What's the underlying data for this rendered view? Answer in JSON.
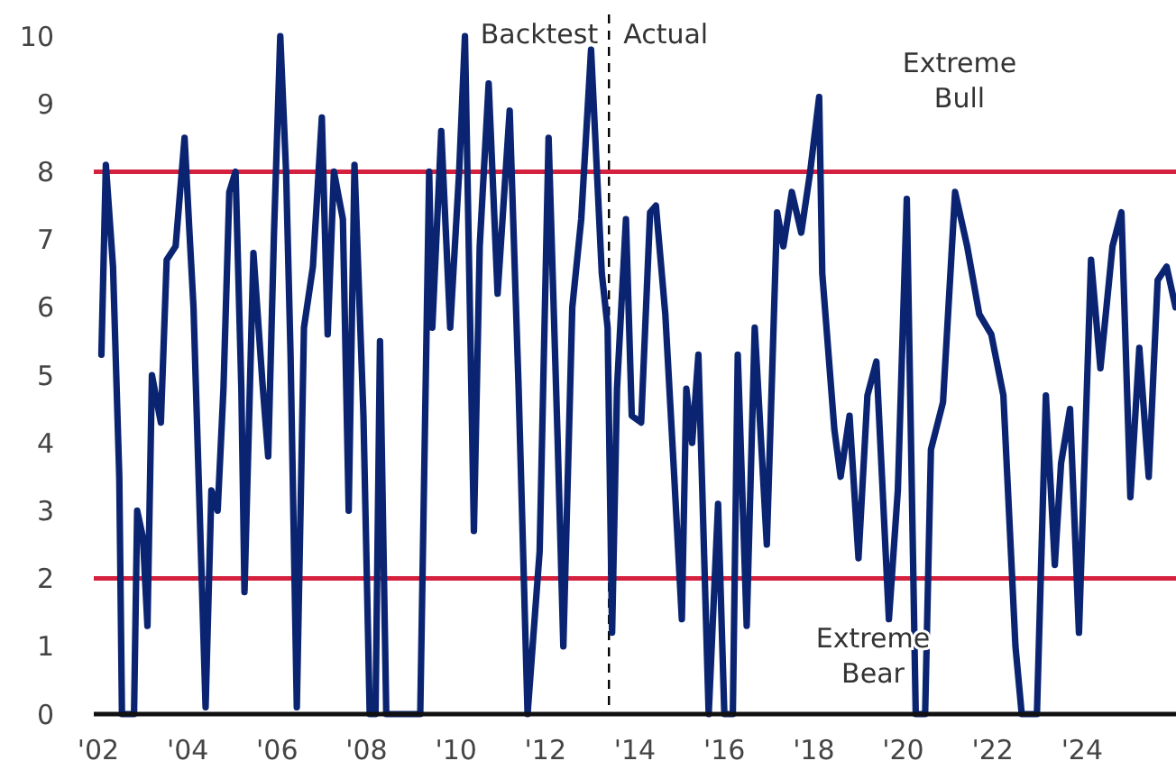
{
  "chart_data": {
    "type": "line",
    "xlim": [
      2001.9,
      2026.1
    ],
    "ylim": [
      0,
      10
    ],
    "xticks": [
      {
        "value": 2002,
        "label": "'02"
      },
      {
        "value": 2004,
        "label": "'04"
      },
      {
        "value": 2006,
        "label": "'06"
      },
      {
        "value": 2008,
        "label": "'08"
      },
      {
        "value": 2010,
        "label": "'10"
      },
      {
        "value": 2012,
        "label": "'12"
      },
      {
        "value": 2014,
        "label": "'14"
      },
      {
        "value": 2016,
        "label": "'16"
      },
      {
        "value": 2018,
        "label": "'18"
      },
      {
        "value": 2020,
        "label": "'20"
      },
      {
        "value": 2022,
        "label": "'22"
      },
      {
        "value": 2024,
        "label": "'24"
      }
    ],
    "yticks": [
      0,
      1,
      2,
      3,
      4,
      5,
      6,
      7,
      8,
      9,
      10
    ],
    "grid": false,
    "marker": "none",
    "line_style": "solid",
    "series": [
      {
        "color": "#0a2472",
        "x": [
          2002.07,
          2002.17,
          2002.33,
          2002.47,
          2002.53,
          2002.8,
          2002.87,
          2003.0,
          2003.1,
          2003.2,
          2003.4,
          2003.53,
          2003.73,
          2003.93,
          2004.04,
          2004.13,
          2004.4,
          2004.53,
          2004.67,
          2004.8,
          2004.93,
          2005.07,
          2005.2,
          2005.27,
          2005.47,
          2005.67,
          2005.8,
          2005.93,
          2006.07,
          2006.2,
          2006.3,
          2006.44,
          2006.6,
          2006.8,
          2007.0,
          2007.13,
          2007.27,
          2007.47,
          2007.6,
          2007.73,
          2007.93,
          2008.07,
          2008.2,
          2008.3,
          2008.44,
          2009.2,
          2009.4,
          2009.47,
          2009.67,
          2009.87,
          2010.07,
          2010.2,
          2010.4,
          2010.53,
          2010.73,
          2010.93,
          2011.2,
          2011.4,
          2011.6,
          2011.87,
          2012.07,
          2012.27,
          2012.4,
          2012.6,
          2012.8,
          2013.02,
          2013.26,
          2013.39,
          2013.49,
          2013.6,
          2013.8,
          2013.93,
          2014.14,
          2014.34,
          2014.47,
          2014.68,
          2014.88,
          2015.05,
          2015.15,
          2015.28,
          2015.42,
          2015.65,
          2015.86,
          2016.0,
          2016.19,
          2016.3,
          2016.5,
          2016.68,
          2016.95,
          2017.18,
          2017.32,
          2017.51,
          2017.72,
          2017.92,
          2018.12,
          2018.19,
          2018.46,
          2018.6,
          2018.8,
          2019.0,
          2019.2,
          2019.4,
          2019.68,
          2019.88,
          2020.08,
          2020.28,
          2020.49,
          2020.62,
          2020.89,
          2021.16,
          2021.43,
          2021.7,
          2021.97,
          2022.24,
          2022.51,
          2022.65,
          2022.99,
          2023.19,
          2023.39,
          2023.53,
          2023.73,
          2023.93,
          2024.2,
          2024.41,
          2024.68,
          2024.88,
          2025.08,
          2025.28,
          2025.49,
          2025.69,
          2025.89,
          2026.09
        ],
        "values": [
          5.3,
          8.1,
          6.6,
          3.5,
          0,
          0,
          3.0,
          2.6,
          1.3,
          5.0,
          4.3,
          6.7,
          6.9,
          8.5,
          7.1,
          6.0,
          0.1,
          3.3,
          3.0,
          4.8,
          7.7,
          8.0,
          4.8,
          1.8,
          6.8,
          4.9,
          3.8,
          7.1,
          10,
          8.0,
          5.3,
          0.1,
          5.7,
          6.6,
          8.8,
          5.6,
          8.0,
          7.3,
          3.0,
          8.1,
          4.4,
          0,
          0,
          5.5,
          0,
          0,
          8.0,
          5.7,
          8.6,
          5.7,
          8.0,
          10,
          2.7,
          6.9,
          9.3,
          6.2,
          8.9,
          4.8,
          0,
          2.4,
          8.5,
          4.1,
          1.0,
          6.0,
          7.3,
          9.8,
          6.5,
          5.7,
          1.2,
          4.8,
          7.3,
          4.4,
          4.3,
          7.4,
          7.5,
          5.9,
          3.5,
          1.4,
          4.8,
          4.0,
          5.3,
          0,
          3.1,
          0,
          0,
          5.3,
          1.3,
          5.7,
          2.5,
          7.4,
          6.9,
          7.7,
          7.1,
          8.0,
          9.1,
          6.5,
          4.2,
          3.5,
          4.4,
          2.3,
          4.7,
          5.2,
          1.4,
          3.3,
          7.6,
          0,
          0,
          3.9,
          4.6,
          7.7,
          6.9,
          5.9,
          5.6,
          4.7,
          1.0,
          0,
          0,
          4.7,
          2.2,
          3.7,
          4.5,
          1.2,
          6.7,
          5.1,
          6.9,
          7.4,
          3.2,
          5.4,
          3.5,
          6.4,
          6.6,
          6.0
        ]
      }
    ],
    "ref_lines": [
      {
        "axis": "y",
        "value": 8,
        "color": "#d4213d",
        "line_style": "solid",
        "label": "Extreme Bull"
      },
      {
        "axis": "y",
        "value": 2,
        "color": "#d4213d",
        "line_style": "solid",
        "label": "Extreme Bear"
      },
      {
        "axis": "x",
        "value": 2013.42,
        "color": "#000000",
        "line_style": "dashed"
      }
    ],
    "annotations": [
      "Backtest",
      "Actual"
    ]
  }
}
